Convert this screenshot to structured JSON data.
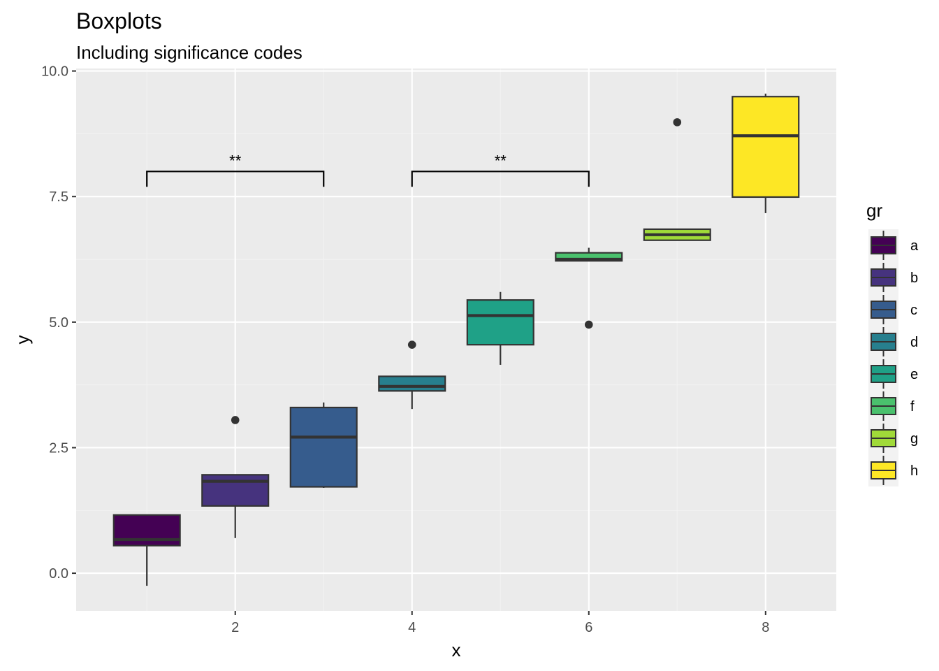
{
  "colors": {
    "panel_bg": "#EBEBEB",
    "grid_major": "#FFFFFF",
    "grid_minor": "#F2F2F2",
    "box_outline": "#333333",
    "axis_text": "#4D4D4D",
    "text": "#000000",
    "legend_key_bg": "#F2F2F2"
  },
  "chart_data": {
    "type": "boxplot",
    "title": "Boxplots",
    "subtitle": "Including significance codes",
    "xlabel": "x",
    "ylabel": "y",
    "xlim": [
      0.2,
      8.8
    ],
    "ylim": [
      -0.75,
      10.05
    ],
    "x_ticks": [
      2,
      4,
      6,
      8
    ],
    "x_tick_labels": [
      "2",
      "4",
      "6",
      "8"
    ],
    "y_ticks": [
      0,
      2.5,
      5,
      7.5,
      10
    ],
    "y_tick_labels": [
      "0.0",
      "2.5",
      "5.0",
      "7.5",
      "10.0"
    ],
    "grid": true,
    "legend": {
      "title": "gr",
      "position": "right",
      "entries": [
        "a",
        "b",
        "c",
        "d",
        "e",
        "f",
        "g",
        "h"
      ]
    },
    "series": [
      {
        "name": "a",
        "x": 1,
        "color": "#440154",
        "whisker_low": -0.25,
        "q1": 0.55,
        "median": 0.67,
        "q3": 1.16,
        "whisker_high": 1.16,
        "outliers": []
      },
      {
        "name": "b",
        "x": 2,
        "color": "#46337E",
        "whisker_low": 0.7,
        "q1": 1.34,
        "median": 1.83,
        "q3": 1.96,
        "whisker_high": 1.96,
        "outliers": [
          3.05
        ]
      },
      {
        "name": "c",
        "x": 3,
        "color": "#365C8D",
        "whisker_low": 1.7,
        "q1": 1.72,
        "median": 2.71,
        "q3": 3.3,
        "whisker_high": 3.4,
        "outliers": []
      },
      {
        "name": "d",
        "x": 4,
        "color": "#277F8E",
        "whisker_low": 3.27,
        "q1": 3.63,
        "median": 3.72,
        "q3": 3.92,
        "whisker_high": 3.92,
        "outliers": [
          4.55
        ]
      },
      {
        "name": "e",
        "x": 5,
        "color": "#1FA187",
        "whisker_low": 4.15,
        "q1": 4.55,
        "median": 5.13,
        "q3": 5.44,
        "whisker_high": 5.6,
        "outliers": []
      },
      {
        "name": "f",
        "x": 6,
        "color": "#4AC16D",
        "whisker_low": 6.22,
        "q1": 6.22,
        "median": 6.25,
        "q3": 6.38,
        "whisker_high": 6.48,
        "outliers": [
          4.95
        ]
      },
      {
        "name": "g",
        "x": 7,
        "color": "#A0DA39",
        "whisker_low": 6.63,
        "q1": 6.63,
        "median": 6.74,
        "q3": 6.85,
        "whisker_high": 6.85,
        "outliers": [
          8.98
        ]
      },
      {
        "name": "h",
        "x": 8,
        "color": "#FDE725",
        "whisker_low": 7.17,
        "q1": 7.49,
        "median": 8.71,
        "q3": 9.49,
        "whisker_high": 9.55,
        "outliers": []
      }
    ],
    "annotations": [
      {
        "type": "significance_bracket",
        "x_start": 1,
        "x_end": 3,
        "y": 8.0,
        "label": "**"
      },
      {
        "type": "significance_bracket",
        "x_start": 4,
        "x_end": 6,
        "y": 8.0,
        "label": "**"
      }
    ]
  }
}
